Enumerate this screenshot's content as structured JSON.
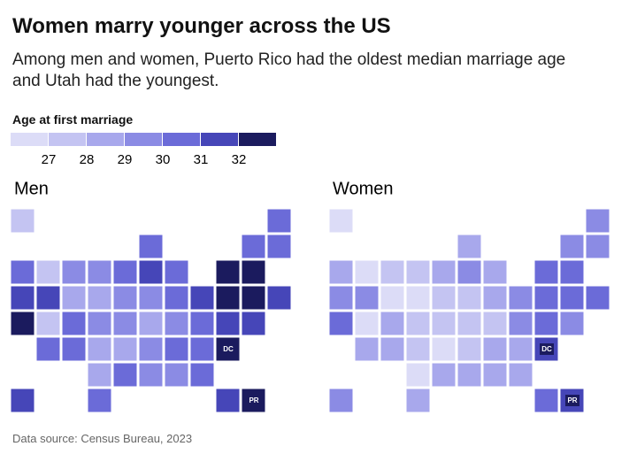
{
  "title": "Women marry younger across the US",
  "subtitle": "Among men and women, Puerto Rico had the oldest median marriage age and Utah had the youngest.",
  "source": "Data source: Census Bureau, 2023",
  "legend": {
    "title": "Age at first marriage",
    "colors": [
      "#dcdcf7",
      "#c4c4f2",
      "#a8a8ec",
      "#8b8be4",
      "#6b6bd8",
      "#4646b8",
      "#1b1b5e"
    ],
    "ticks": [
      27,
      28,
      29,
      30,
      31,
      32
    ]
  },
  "chart_data": [
    {
      "type": "map",
      "title": "Men",
      "callouts": [
        "DC",
        "PR"
      ],
      "values": [
        27.5,
        30.5,
        30.3,
        30.5,
        30.5,
        30.3,
        27.8,
        29.5,
        29.3,
        30.2,
        31.3,
        30.4,
        32.5,
        32.6,
        31,
        31.2,
        28.5,
        28.3,
        29,
        29.4,
        30.1,
        31.1,
        32.2,
        32.1,
        31.6,
        32.4,
        27,
        30.2,
        29.2,
        29.7,
        28.6,
        29.5,
        30.6,
        31.5,
        31.1,
        30.6,
        30.4,
        28.9,
        28.2,
        29.2,
        30.4,
        30.3,
        32.6,
        28.5,
        30.2,
        29.8,
        29.8,
        30.5,
        31.8,
        30.4,
        31.6,
        33
      ]
    },
    {
      "type": "map",
      "title": "Women",
      "callouts": [
        "DC",
        "PR"
      ],
      "values": [
        26.5,
        29,
        28.5,
        29.5,
        29.2,
        28.3,
        26,
        27,
        27,
        28.4,
        29.6,
        28.6,
        30.5,
        30.6,
        29,
        29.5,
        26.5,
        26.6,
        27,
        27.6,
        28.6,
        29.3,
        30.6,
        30.4,
        30.3,
        30.6,
        25.6,
        28.4,
        27.4,
        27.8,
        27.2,
        27.6,
        29,
        30.1,
        29.6,
        28.5,
        28.4,
        27.1,
        26.4,
        27.6,
        28.8,
        28.6,
        31.5,
        26.7,
        28.2,
        28.3,
        28.2,
        28.7,
        29.8,
        28.4,
        30.2,
        31.8
      ]
    }
  ]
}
